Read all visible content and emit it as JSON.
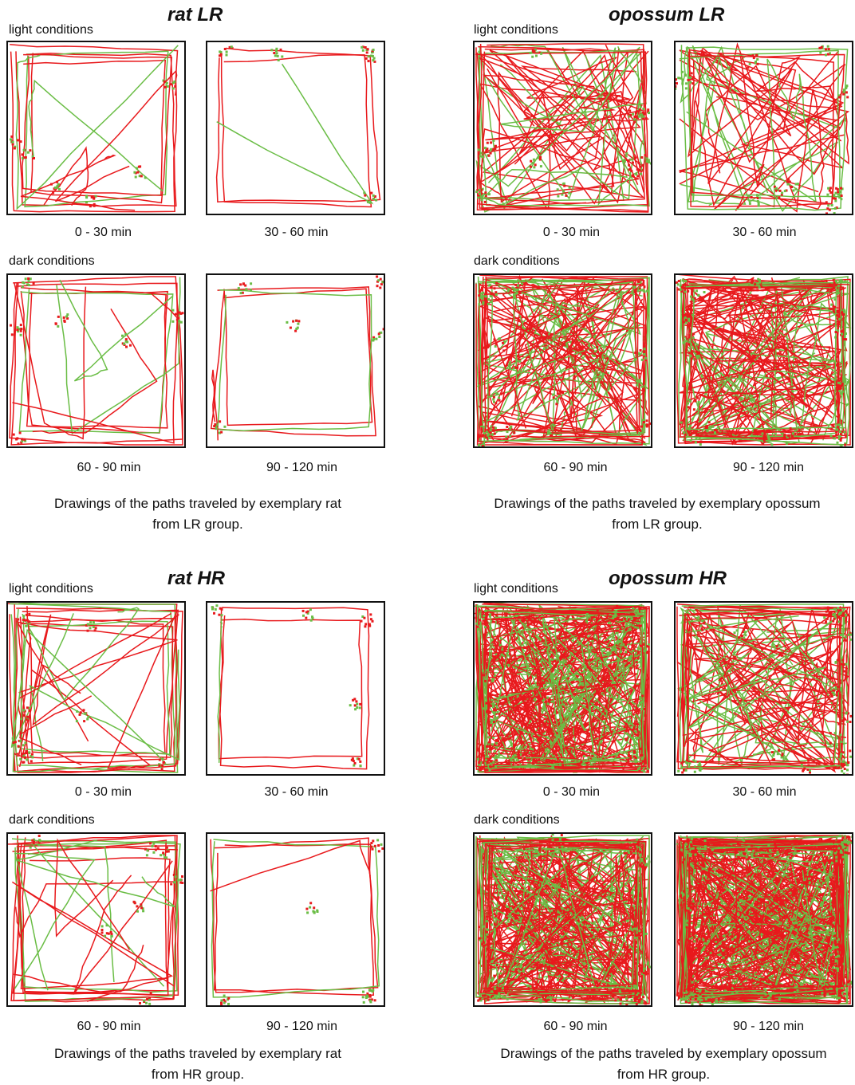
{
  "colors": {
    "path_primary": "#e8191c",
    "path_secondary": "#6abd45",
    "frame": "#111111"
  },
  "panels": [
    {
      "title": "rat LR",
      "density": "low",
      "light_label": "light conditions",
      "dark_label": "dark conditions",
      "plots": [
        {
          "time": "0 - 30 min",
          "pattern": "loop-diagonal",
          "density": 3
        },
        {
          "time": "30 - 60 min",
          "pattern": "perimeter",
          "density": 1
        },
        {
          "time": "60 - 90 min",
          "pattern": "loop-diagonal",
          "density": 3
        },
        {
          "time": "90 - 120 min",
          "pattern": "perimeter",
          "density": 2
        }
      ],
      "caption_line1": "Drawings of the paths traveled by exemplary rat",
      "caption_line2": "from LR group."
    },
    {
      "title": "opossum LR",
      "density": "medium",
      "light_label": "light conditions",
      "dark_label": "dark conditions",
      "plots": [
        {
          "time": "0 - 30 min",
          "pattern": "dense",
          "density": 18
        },
        {
          "time": "30 - 60 min",
          "pattern": "dense",
          "density": 14
        },
        {
          "time": "60 - 90 min",
          "pattern": "dense",
          "density": 32
        },
        {
          "time": "90 - 120 min",
          "pattern": "dense",
          "density": 38
        }
      ],
      "caption_line1": "Drawings of the paths traveled by exemplary opossum",
      "caption_line2": "from LR group."
    },
    {
      "title": "rat HR",
      "density": "medium",
      "light_label": "light conditions",
      "dark_label": "dark conditions",
      "plots": [
        {
          "time": "0 - 30 min",
          "pattern": "loop-diagonal",
          "density": 7
        },
        {
          "time": "30 - 60 min",
          "pattern": "perimeter",
          "density": 1
        },
        {
          "time": "60 - 90 min",
          "pattern": "loop-diagonal",
          "density": 6
        },
        {
          "time": "90 - 120 min",
          "pattern": "perimeter",
          "density": 2
        }
      ],
      "caption_line1": "Drawings of the paths traveled by exemplary rat",
      "caption_line2": "from HR group."
    },
    {
      "title": "opossum HR",
      "density": "high",
      "light_label": "light conditions",
      "dark_label": "dark conditions",
      "plots": [
        {
          "time": "0 - 30 min",
          "pattern": "dense",
          "density": 60
        },
        {
          "time": "30 - 60 min",
          "pattern": "dense",
          "density": 30
        },
        {
          "time": "60 - 90 min",
          "pattern": "dense",
          "density": 60
        },
        {
          "time": "90 - 120 min",
          "pattern": "dense",
          "density": 85
        }
      ],
      "caption_line1": "Drawings of the paths traveled by exemplary opossum",
      "caption_line2": "from HR group."
    }
  ]
}
